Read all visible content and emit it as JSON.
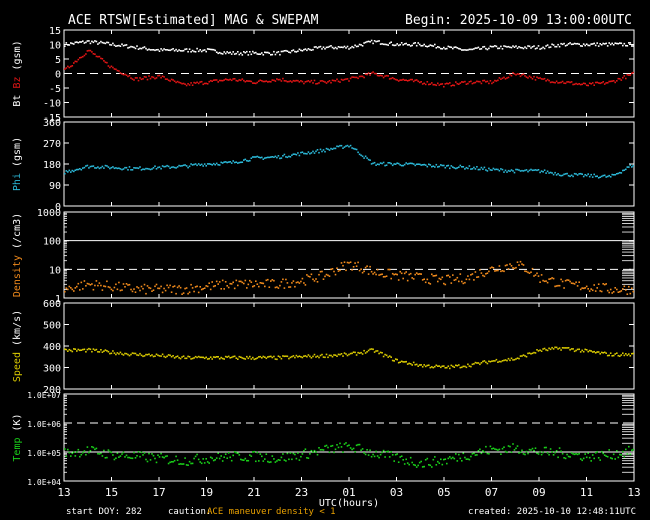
{
  "header": {
    "title": "ACE RTSW[Estimated] MAG & SWEPAM",
    "begin": "Begin: 2025-10-09 13:00:00UTC"
  },
  "footer": {
    "start_doy": "start DOY: 282",
    "caution_label": "caution:",
    "caution_maneuver": "ACE maneuver",
    "caution_density": "density < 1",
    "created": "created: 2025-10-10 12:48:11UTC"
  },
  "x_axis": {
    "label": "UTC(hours)",
    "ticks": [
      "13",
      "15",
      "17",
      "19",
      "21",
      "23",
      "01",
      "03",
      "05",
      "07",
      "09",
      "11",
      "13"
    ]
  },
  "colors": {
    "frame": "#ffffff",
    "bt": "#ffffff",
    "bz": "#e01515",
    "phi": "#2bb7d6",
    "density": "#f08a1c",
    "speed": "#d8c800",
    "temp": "#19d019"
  },
  "chart_data": [
    {
      "type": "line",
      "panel": "mag",
      "ylabel_parts": [
        "Bt",
        "Bz",
        "(gsm)"
      ],
      "y_ticks": [
        "15",
        "10",
        "5",
        "0",
        "-5",
        "-10",
        "-15"
      ],
      "ylim": [
        -15,
        15
      ],
      "dashed_ref": 0,
      "x_hours": [
        0,
        1,
        2,
        3,
        4,
        5,
        6,
        7,
        8,
        9,
        10,
        11,
        12,
        13,
        14,
        15,
        16,
        17,
        18,
        19,
        20,
        21,
        22,
        23,
        24
      ],
      "series": [
        {
          "name": "Bt",
          "values": [
            10,
            11,
            10,
            9,
            8,
            8,
            8,
            7,
            7,
            7,
            8,
            9,
            9,
            11,
            10,
            10,
            9,
            8,
            9,
            9,
            9,
            10,
            10,
            10,
            10
          ]
        },
        {
          "name": "Bz",
          "values": [
            1,
            8,
            2,
            -2,
            -1,
            -4,
            -3,
            -2,
            -3,
            -2,
            -3,
            -3,
            -2,
            0,
            -2,
            -3,
            -4,
            -3,
            -3,
            0,
            -2,
            -3,
            -4,
            -3,
            0
          ]
        }
      ]
    },
    {
      "type": "line",
      "panel": "phi",
      "ylabel_parts": [
        "Phi",
        "(gsm)"
      ],
      "y_ticks": [
        "360",
        "270",
        "180",
        "90",
        "0"
      ],
      "ylim": [
        0,
        360
      ],
      "x_hours": [
        0,
        1,
        2,
        3,
        4,
        5,
        6,
        7,
        8,
        9,
        10,
        11,
        12,
        13,
        14,
        15,
        16,
        17,
        18,
        19,
        20,
        21,
        22,
        23,
        24
      ],
      "values": [
        145,
        170,
        165,
        160,
        165,
        170,
        180,
        185,
        205,
        210,
        225,
        240,
        260,
        180,
        180,
        175,
        170,
        165,
        155,
        150,
        150,
        135,
        130,
        125,
        180
      ]
    },
    {
      "type": "scatter",
      "panel": "density",
      "ylabel_parts": [
        "Density",
        "(/cm3)"
      ],
      "y_ticks": [
        "1000",
        "100",
        "10",
        "1"
      ],
      "ylim": [
        1,
        1000
      ],
      "scale": "log",
      "solid_ref": 100,
      "dashed_ref": 10,
      "x_hours": [
        0,
        1,
        2,
        3,
        4,
        5,
        6,
        7,
        8,
        9,
        10,
        11,
        12,
        13,
        14,
        15,
        16,
        17,
        18,
        19,
        20,
        21,
        22,
        23,
        24
      ],
      "values": [
        2,
        3,
        2.5,
        2,
        2,
        2,
        2.5,
        3,
        3,
        3,
        4,
        6,
        15,
        8,
        6,
        5,
        4,
        5,
        10,
        15,
        5,
        3,
        2.5,
        2,
        2
      ]
    },
    {
      "type": "scatter",
      "panel": "speed",
      "ylabel_parts": [
        "Speed",
        "(km/s)"
      ],
      "y_ticks": [
        "600",
        "500",
        "400",
        "300",
        "200"
      ],
      "ylim": [
        200,
        600
      ],
      "x_hours": [
        0,
        1,
        2,
        3,
        4,
        5,
        6,
        7,
        8,
        9,
        10,
        11,
        12,
        13,
        14,
        15,
        16,
        17,
        18,
        19,
        20,
        21,
        22,
        23,
        24
      ],
      "values": [
        380,
        380,
        370,
        360,
        355,
        345,
        345,
        345,
        345,
        345,
        350,
        355,
        360,
        380,
        330,
        310,
        300,
        310,
        330,
        340,
        380,
        390,
        375,
        360,
        360
      ]
    },
    {
      "type": "scatter",
      "panel": "temp",
      "ylabel_parts": [
        "Temp",
        "(K)"
      ],
      "y_ticks": [
        "1.0E+07",
        "1.0E+06",
        "1.0E+05",
        "1.0E+04"
      ],
      "ylim": [
        10000,
        10000000
      ],
      "scale": "log",
      "solid_ref": 100000,
      "dashed_ref": 1000000,
      "x_hours": [
        0,
        1,
        2,
        3,
        4,
        5,
        6,
        7,
        8,
        9,
        10,
        11,
        12,
        13,
        14,
        15,
        16,
        17,
        18,
        19,
        20,
        21,
        22,
        23,
        24
      ],
      "values": [
        90000,
        110000,
        80000,
        70000,
        60000,
        50000,
        60000,
        70000,
        70000,
        60000,
        80000,
        120000,
        150000,
        90000,
        60000,
        40000,
        50000,
        80000,
        120000,
        130000,
        100000,
        90000,
        70000,
        80000,
        110000
      ]
    }
  ]
}
